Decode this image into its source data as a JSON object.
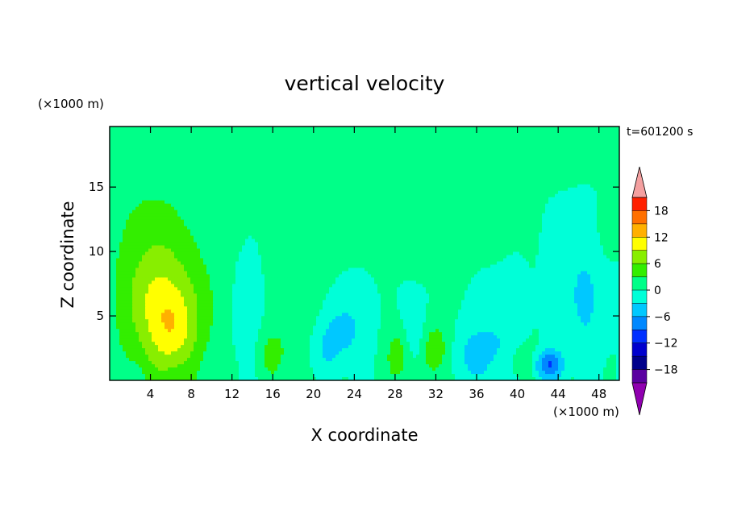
{
  "chart_data": {
    "type": "heatmap",
    "title": "vertical velocity",
    "time_label": "t=601200 s",
    "xlabel": "X coordinate",
    "ylabel": "Z coordinate",
    "x_unit": "(×1000 m)",
    "y_unit": "(×1000 m)",
    "xlim": [
      0,
      50
    ],
    "ylim": [
      0,
      19.7
    ],
    "x_ticks": [
      4,
      8,
      12,
      16,
      20,
      24,
      28,
      32,
      36,
      40,
      44,
      48
    ],
    "y_ticks": [
      5,
      10,
      15
    ],
    "colorbar": {
      "labels": [
        "18",
        "12",
        "6",
        "0",
        "−6",
        "−12",
        "−18"
      ],
      "label_values": [
        18,
        12,
        6,
        0,
        -6,
        -12,
        -18
      ],
      "levels": [
        -21,
        -18,
        -15,
        -12,
        -9,
        -6,
        -3,
        0,
        3,
        6,
        9,
        12,
        15,
        18,
        21
      ],
      "colors": [
        "#5a00a0",
        "#00008b",
        "#0000cd",
        "#0030ff",
        "#0088ff",
        "#00c8ff",
        "#00ffd8",
        "#00ff88",
        "#33ee00",
        "#88ee00",
        "#ffff00",
        "#ffb000",
        "#ff7000",
        "#ff2000"
      ],
      "over_color": "#f4a0a0",
      "under_color": "#9000b0"
    },
    "features": [
      {
        "x": 5.0,
        "z": 5.0,
        "sx": 2.6,
        "sz": 3.6,
        "amp": 8.5
      },
      {
        "x": 6.5,
        "z": 3.5,
        "sx": 1.3,
        "sz": 2.2,
        "amp": 4.0
      },
      {
        "x": 4.5,
        "z": 8.5,
        "sx": 3.5,
        "sz": 3.5,
        "amp": 2.5
      },
      {
        "x": 4.0,
        "z": 13.5,
        "sx": 3.6,
        "sz": 3.0,
        "amp": 2.0
      },
      {
        "x": 28.3,
        "z": 1.8,
        "sx": 0.8,
        "sz": 1.5,
        "amp": 5.5
      },
      {
        "x": 32.0,
        "z": 2.3,
        "sx": 1.1,
        "sz": 1.6,
        "amp": 6.0
      },
      {
        "x": 16.0,
        "z": 2.0,
        "sx": 1.2,
        "sz": 1.5,
        "amp": 3.5
      },
      {
        "x": 40.5,
        "z": 1.5,
        "sx": 1.2,
        "sz": 1.0,
        "amp": 3.0
      },
      {
        "x": 31.0,
        "z": 14.0,
        "sx": 4.0,
        "sz": 2.8,
        "amp": 2.2
      },
      {
        "x": 24.5,
        "z": 15.5,
        "sx": 1.3,
        "sz": 1.2,
        "amp": 2.0
      },
      {
        "x": 45.0,
        "z": 18.2,
        "sx": 3.5,
        "sz": 1.4,
        "amp": 2.0
      },
      {
        "x": 19.0,
        "z": 6.0,
        "sx": 2.2,
        "sz": 3.5,
        "amp": 1.8
      },
      {
        "x": 9.5,
        "z": 5.0,
        "sx": 1.4,
        "sz": 3.0,
        "amp": 1.5
      },
      {
        "x": 43.0,
        "z": 1.2,
        "sx": 1.0,
        "sz": 0.8,
        "amp": -9.0
      },
      {
        "x": 46.5,
        "z": 6.5,
        "sx": 1.6,
        "sz": 3.5,
        "amp": -3.5
      },
      {
        "x": 23.0,
        "z": 4.0,
        "sx": 1.5,
        "sz": 2.0,
        "amp": -4.0
      },
      {
        "x": 13.5,
        "z": 5.0,
        "sx": 1.0,
        "sz": 2.5,
        "amp": -2.5
      },
      {
        "x": 36.0,
        "z": 2.0,
        "sx": 2.2,
        "sz": 1.5,
        "amp": -4.0
      },
      {
        "x": 38.5,
        "z": 4.5,
        "sx": 1.5,
        "sz": 2.0,
        "amp": -2.0
      },
      {
        "x": 21.0,
        "z": 2.5,
        "sx": 1.2,
        "sz": 1.5,
        "amp": -2.5
      },
      {
        "x": 30.0,
        "z": 3.5,
        "sx": 0.8,
        "sz": 1.8,
        "amp": -3.0
      },
      {
        "x": 48.8,
        "z": 11.5,
        "sx": 0.8,
        "sz": 1.8,
        "amp": 1.5
      }
    ]
  }
}
